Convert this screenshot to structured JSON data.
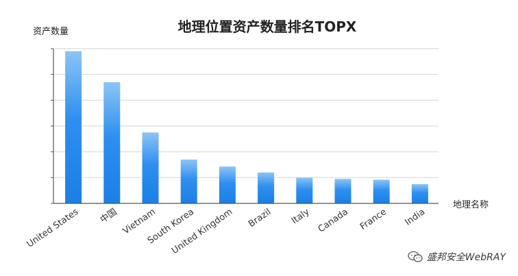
{
  "chart_data": {
    "type": "bar",
    "title": "地理位置资产数量排名TOPX",
    "ylabel": "资产数量",
    "xlabel": "地理名称",
    "categories": [
      "United States",
      "中国",
      "Vietnam",
      "South Korea",
      "United Kingdom",
      "Brazil",
      "Italy",
      "Canada",
      "France",
      "India"
    ],
    "values": [
      59,
      47,
      27.5,
      17,
      14.3,
      12,
      10,
      9.5,
      9.2,
      7.5
    ],
    "ylim": [
      0,
      60
    ],
    "grid": true,
    "colors": {
      "bar_top": "#8cc4f5",
      "bar_mid": "#2e8ff0",
      "bar_bottom": "#1a7fe6",
      "grid": "#d9d9d9",
      "axis": "#555555"
    }
  },
  "watermark": {
    "icon": "wechat-icon",
    "text": "盛邦安全WebRAY"
  }
}
